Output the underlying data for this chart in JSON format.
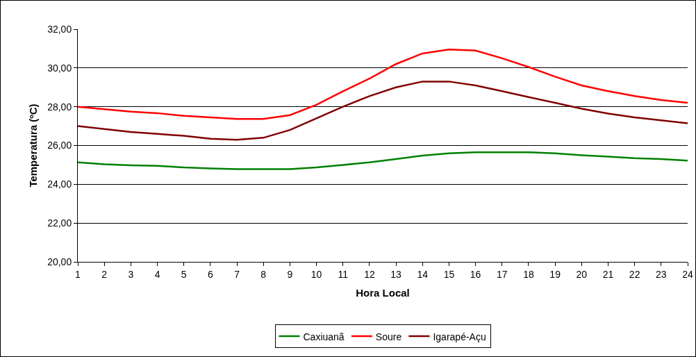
{
  "chart_data": {
    "type": "line",
    "xlabel": "Hora Local",
    "ylabel": "Temperatura (ºC)",
    "x": [
      1,
      2,
      3,
      4,
      5,
      6,
      7,
      8,
      9,
      10,
      11,
      12,
      13,
      14,
      15,
      16,
      17,
      18,
      19,
      20,
      21,
      22,
      23,
      24
    ],
    "xlim": [
      1,
      24
    ],
    "xticks": [
      1,
      2,
      3,
      4,
      5,
      6,
      7,
      8,
      9,
      10,
      11,
      12,
      13,
      14,
      15,
      16,
      17,
      18,
      19,
      20,
      21,
      22,
      23,
      24
    ],
    "ylim": [
      20,
      32
    ],
    "yticks": [
      {
        "value": 20,
        "label": "20,00"
      },
      {
        "value": 22,
        "label": "22,00"
      },
      {
        "value": 24,
        "label": "24,00"
      },
      {
        "value": 26,
        "label": "26,00"
      },
      {
        "value": 28,
        "label": "28,00"
      },
      {
        "value": 30,
        "label": "30,00"
      },
      {
        "value": 32,
        "label": "32,00"
      }
    ],
    "grid": "y",
    "legend": "bottom",
    "marker": "none",
    "line_style": "solid",
    "series": [
      {
        "name": "Caxiuanã",
        "color": "#008000",
        "values": [
          25.13,
          25.03,
          24.98,
          24.95,
          24.87,
          24.82,
          24.78,
          24.78,
          24.78,
          24.87,
          25.0,
          25.13,
          25.3,
          25.48,
          25.6,
          25.65,
          25.65,
          25.65,
          25.6,
          25.5,
          25.43,
          25.35,
          25.3,
          25.22
        ]
      },
      {
        "name": "Soure",
        "color": "#ff0000",
        "values": [
          28.0,
          27.87,
          27.75,
          27.67,
          27.53,
          27.45,
          27.37,
          27.37,
          27.57,
          28.1,
          28.8,
          29.45,
          30.2,
          30.75,
          30.95,
          30.9,
          30.5,
          30.05,
          29.55,
          29.1,
          28.8,
          28.55,
          28.35,
          28.2
        ]
      },
      {
        "name": "Igarapé-Açu",
        "color": "#800000",
        "values": [
          27.0,
          26.85,
          26.7,
          26.6,
          26.5,
          26.35,
          26.3,
          26.4,
          26.8,
          27.4,
          28.0,
          28.55,
          29.0,
          29.3,
          29.3,
          29.1,
          28.8,
          28.5,
          28.2,
          27.9,
          27.65,
          27.45,
          27.3,
          27.15
        ]
      }
    ]
  }
}
